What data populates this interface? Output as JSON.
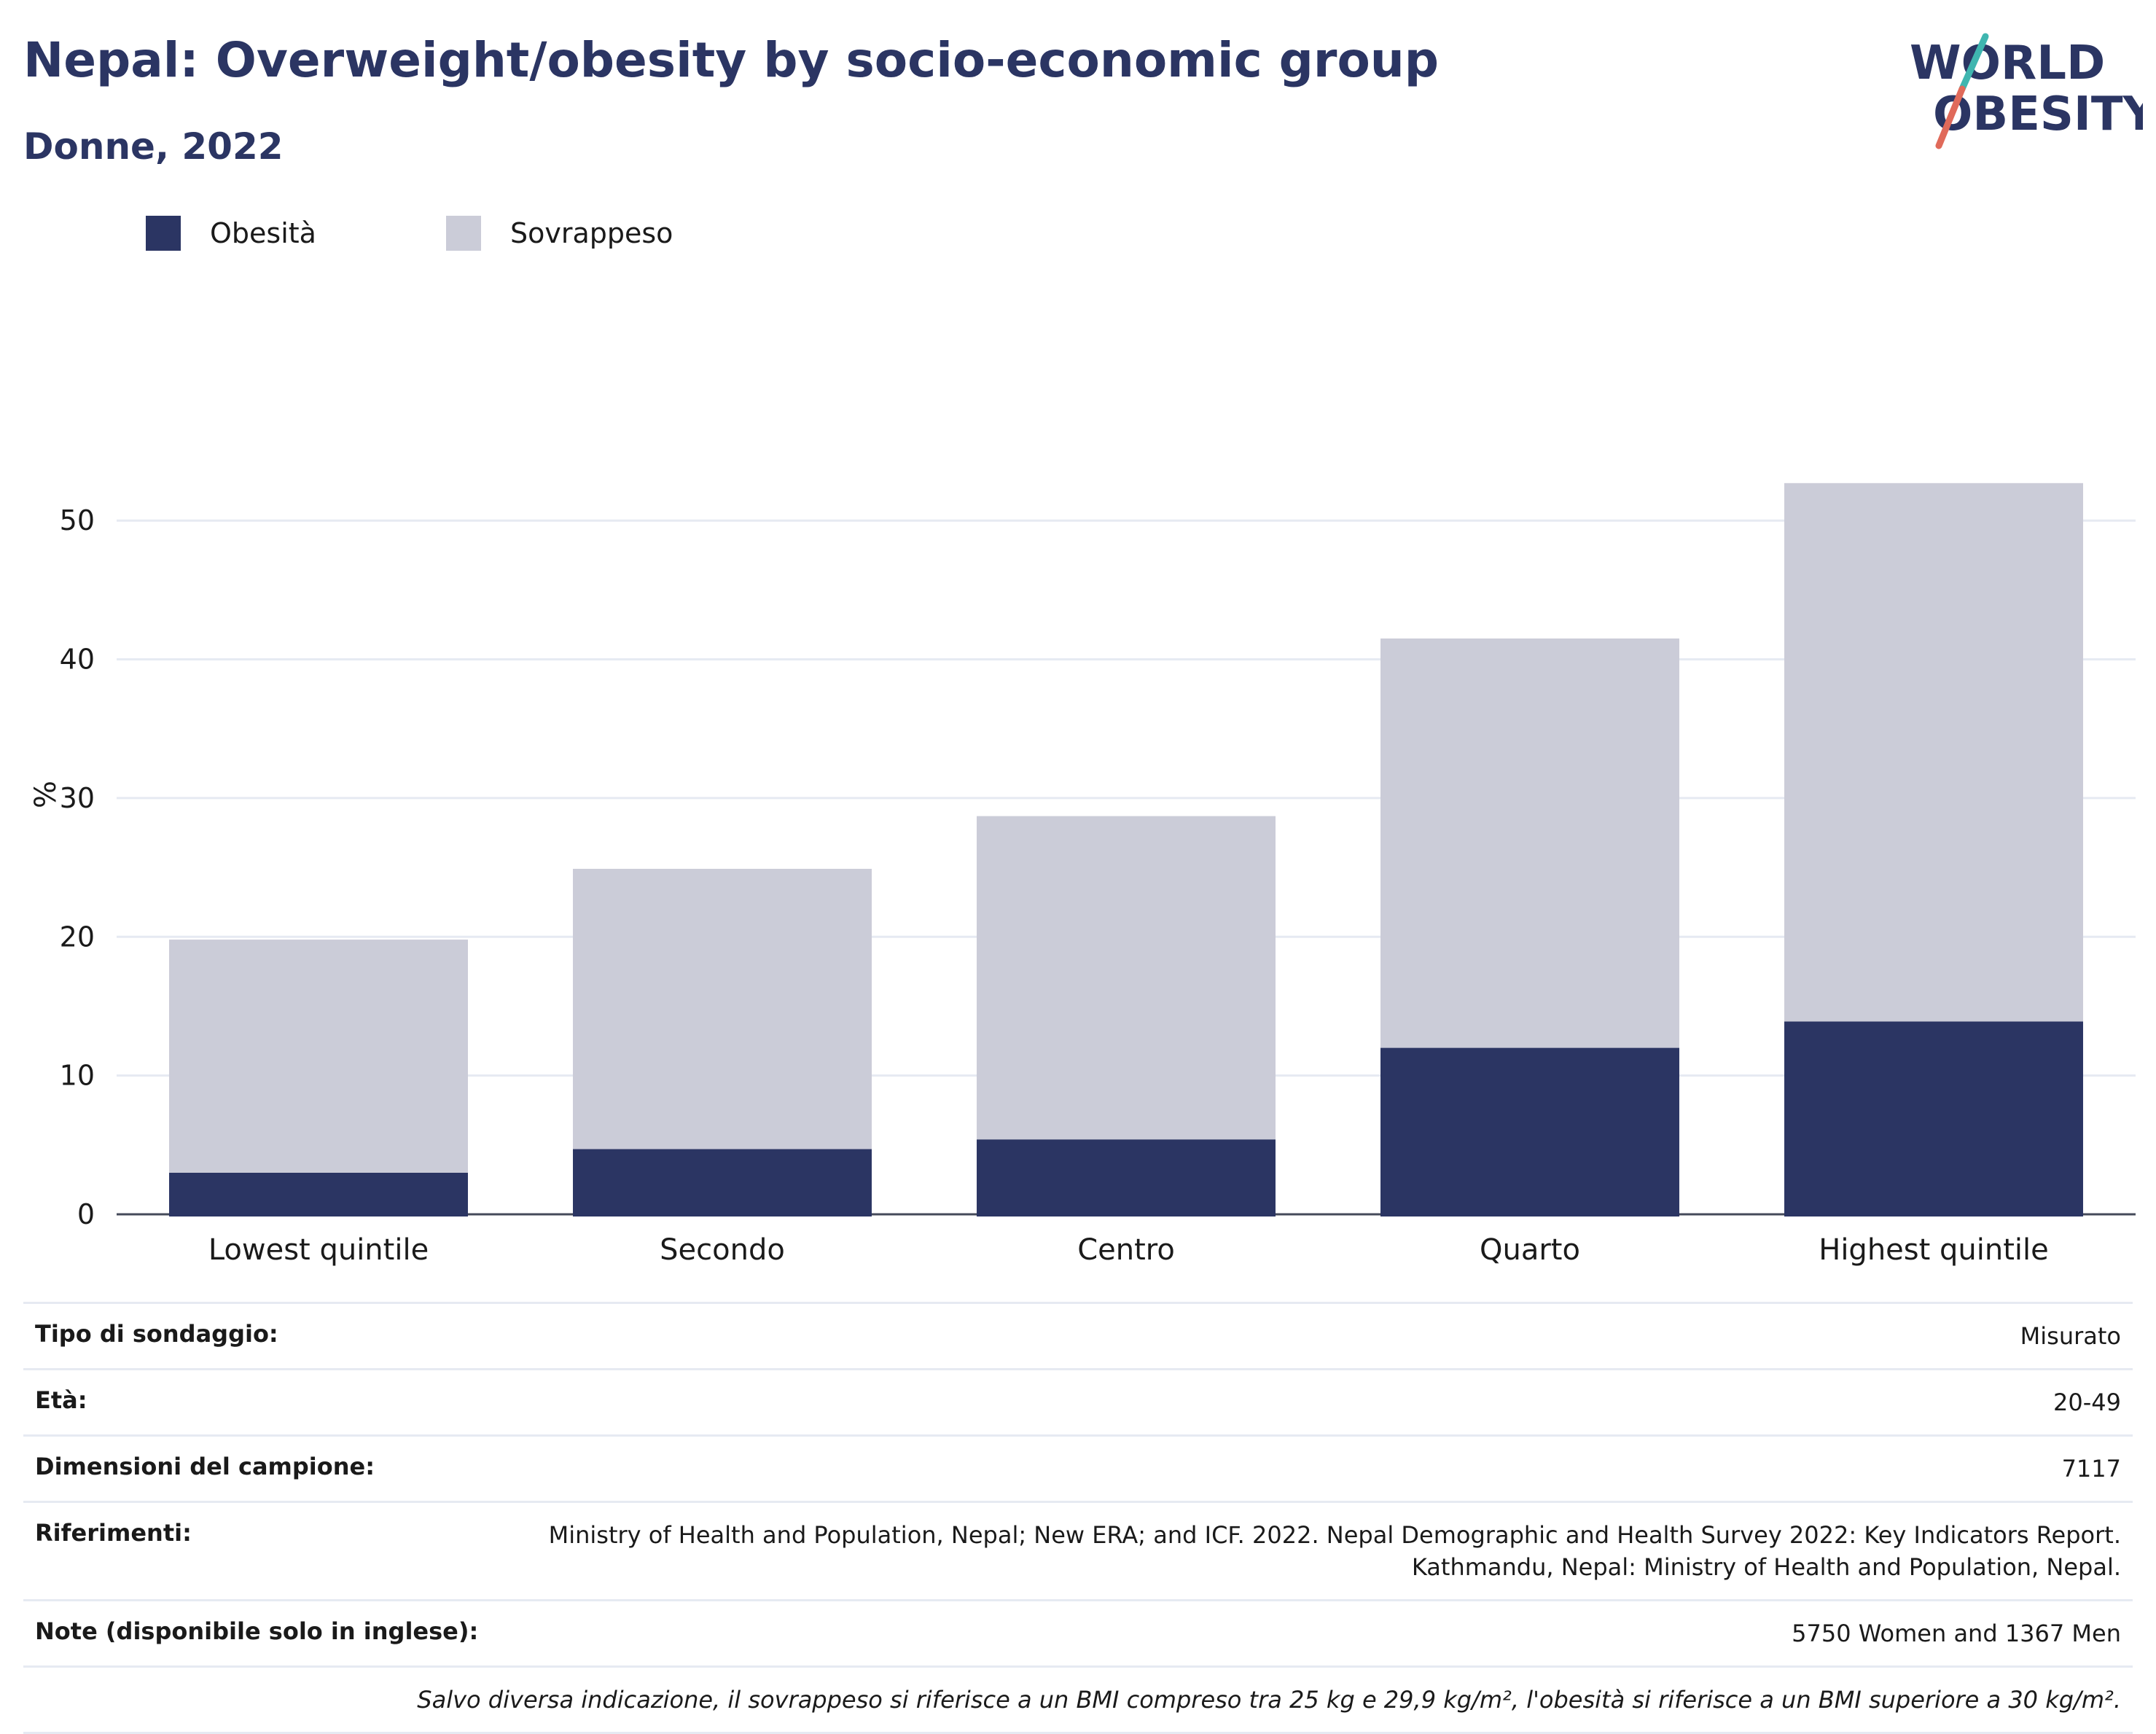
{
  "header": {
    "title": "Nepal: Overweight/obesity by socio-economic group",
    "subtitle": "Donne, 2022",
    "logo_line1": "WORLD",
    "logo_line2": "OBESITY"
  },
  "legend": [
    {
      "label": "Obesità",
      "color": "#2b3563"
    },
    {
      "label": "Sovrappeso",
      "color": "#cbccd8"
    }
  ],
  "chart_data": {
    "type": "bar",
    "stacked": true,
    "categories": [
      "Lowest quintile",
      "Secondo",
      "Centro",
      "Quarto",
      "Highest quintile"
    ],
    "series": [
      {
        "name": "Obesità",
        "values": [
          3.0,
          4.7,
          5.4,
          12.0,
          13.9
        ],
        "color": "#2b3563"
      },
      {
        "name": "Sovrappeso",
        "values": [
          16.8,
          20.2,
          23.3,
          29.5,
          38.8
        ],
        "color": "#cbccd8"
      }
    ],
    "ylabel": "%",
    "ylim": [
      0,
      56
    ],
    "yticks": [
      0,
      10,
      20,
      30,
      40,
      50
    ],
    "grid": true,
    "legend_position": "top-left"
  },
  "info": {
    "survey_type": {
      "label": "Tipo di sondaggio:",
      "value": "Misurato"
    },
    "age": {
      "label": "Età:",
      "value": "20-49"
    },
    "sample_size": {
      "label": "Dimensioni del campione:",
      "value": "7117"
    },
    "references": {
      "label": "Riferimenti:",
      "line1": "Ministry of Health and Population, Nepal; New ERA; and ICF. 2022. Nepal Demographic and Health Survey 2022: Key Indicators Report.",
      "line2": "Kathmandu, Nepal: Ministry of Health and Population, Nepal."
    },
    "notes": {
      "label": "Note (disponibile solo in inglese):",
      "value": "5750 Women and 1367 Men"
    },
    "footnote": "Salvo diversa indicazione, il sovrappeso si riferisce a un BMI compreso tra 25 kg e 29,9 kg/m², l'obesità si riferisce a un BMI superiore a 30 kg/m²."
  }
}
